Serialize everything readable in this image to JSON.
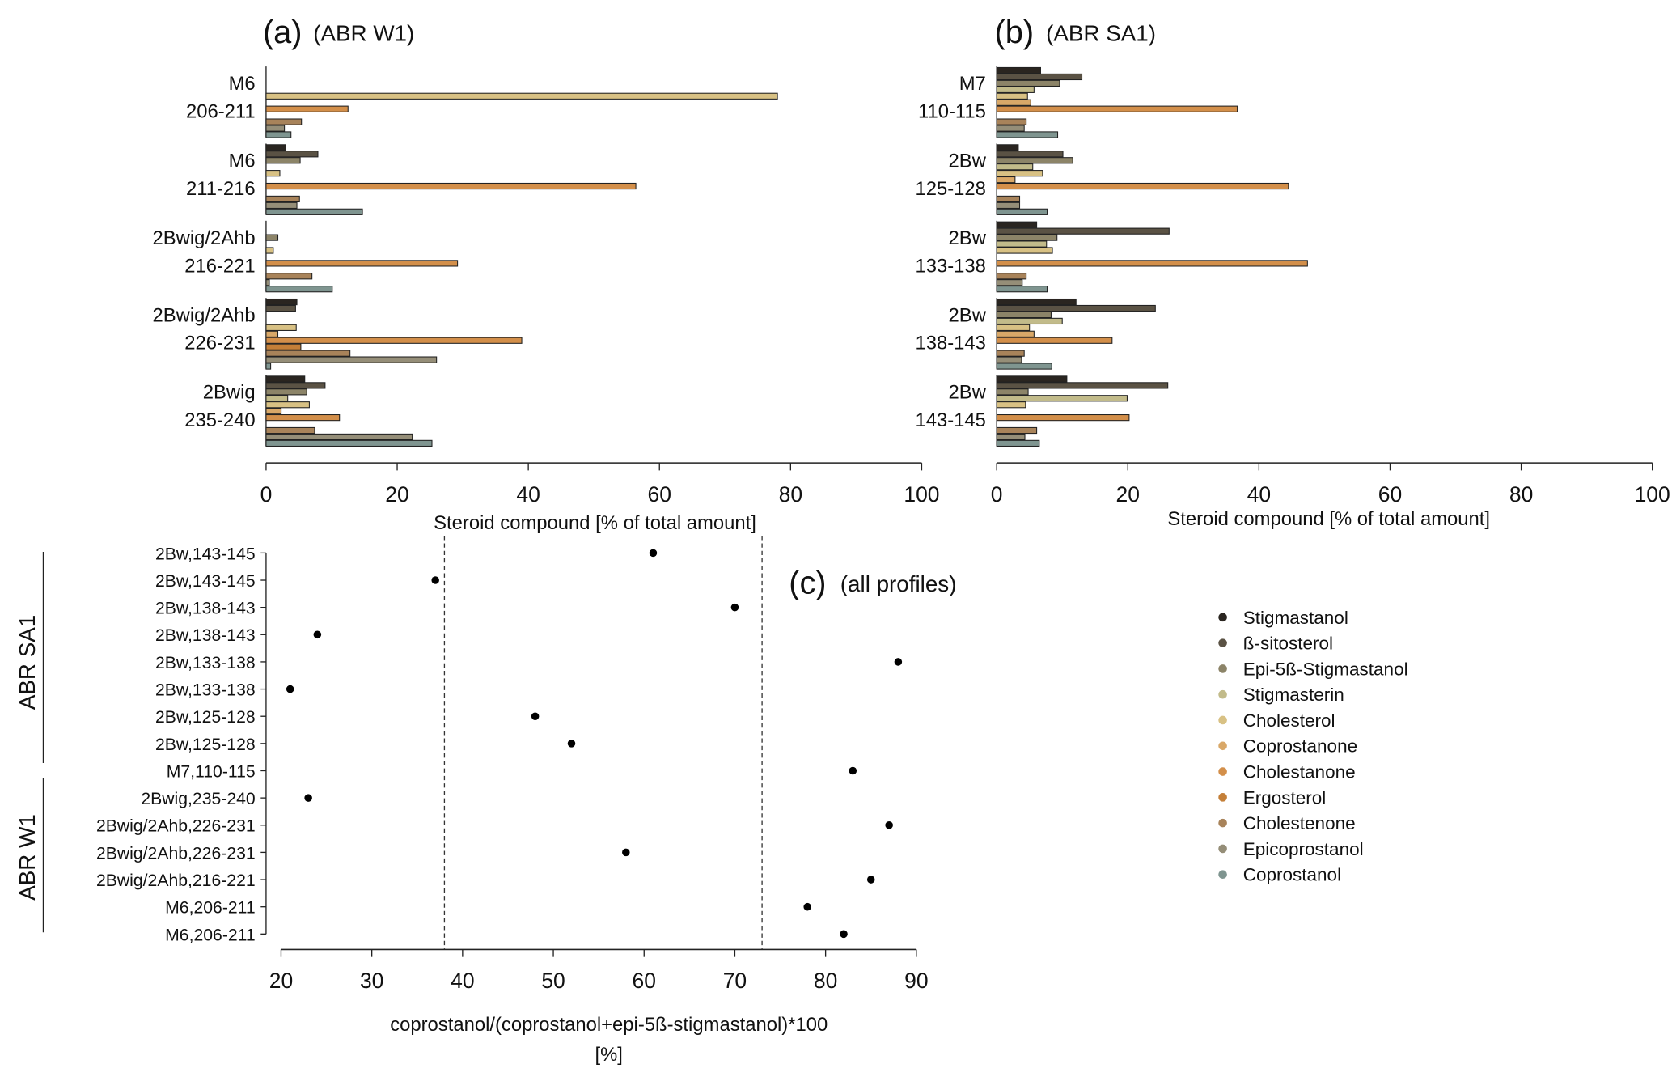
{
  "compounds": [
    "Stigmastanol",
    "ß-sitosterol",
    "Epi-5ß-Stigmastanol",
    "Stigmasterin",
    "Cholesterol",
    "Coprostanone",
    "Cholestanone",
    "Ergosterol",
    "Cholestenone",
    "Epicoprostanol",
    "Coprostanol"
  ],
  "colors": [
    "#2a2520",
    "#5a5244",
    "#8c8468",
    "#c2bb8a",
    "#d8c184",
    "#d9a868",
    "#d38f4a",
    "#c47f38",
    "#a8835a",
    "#958e78",
    "#7f9590"
  ],
  "chart_data": [
    {
      "type": "bar",
      "orientation": "horizontal",
      "panel": "(a)",
      "title": "(ABR W1)",
      "xlabel": "Steroid compound [% of total amount]",
      "xlim": [
        0,
        100
      ],
      "xticks": [
        "0",
        "20",
        "40",
        "60",
        "80",
        "100"
      ],
      "groups": [
        {
          "label1": "M6",
          "label2": "206-211",
          "values": [
            0,
            0,
            0,
            0,
            78,
            0,
            12.5,
            0,
            5.4,
            2.8,
            3.8
          ]
        },
        {
          "label1": "M6",
          "label2": "211-216",
          "values": [
            3.0,
            7.9,
            5.2,
            0,
            2.1,
            0,
            56.4,
            0,
            5.1,
            4.7,
            14.7
          ]
        },
        {
          "label1": "2Bwig/2Ahb",
          "label2": "216-221",
          "values": [
            0,
            0,
            1.8,
            0,
            1.1,
            0,
            29.2,
            0,
            7.0,
            0.5,
            10.1
          ]
        },
        {
          "label1": "2Bwig/2Ahb",
          "label2": "226-231",
          "values": [
            4.7,
            4.5,
            0,
            0,
            4.6,
            1.8,
            39.0,
            5.3,
            12.8,
            26.0,
            0.7
          ]
        },
        {
          "label1": "2Bwig",
          "label2": "235-240",
          "values": [
            5.9,
            9.0,
            6.2,
            3.3,
            6.6,
            2.3,
            11.2,
            0,
            7.4,
            22.3,
            25.3
          ]
        }
      ]
    },
    {
      "type": "bar",
      "orientation": "horizontal",
      "panel": "(b)",
      "title": "(ABR SA1)",
      "xlabel": "Steroid compound [% of total amount]",
      "xlim": [
        0,
        100
      ],
      "xticks": [
        "0",
        "20",
        "40",
        "60",
        "80",
        "100"
      ],
      "groups": [
        {
          "label1": "M7",
          "label2": "110-115",
          "values": [
            6.7,
            13.0,
            9.6,
            5.7,
            4.7,
            5.2,
            36.7,
            0,
            4.5,
            4.2,
            9.3
          ]
        },
        {
          "label1": "2Bw",
          "label2": "125-128",
          "values": [
            3.3,
            10.1,
            11.6,
            5.5,
            7.0,
            2.8,
            44.5,
            0,
            3.5,
            3.5,
            7.7
          ]
        },
        {
          "label1": "2Bw",
          "label2": "133-138",
          "values": [
            6.1,
            26.3,
            9.2,
            7.6,
            8.5,
            0,
            47.4,
            0,
            4.5,
            3.9,
            7.7
          ]
        },
        {
          "label1": "2Bw",
          "label2": "138-143",
          "values": [
            12.1,
            24.2,
            8.3,
            10.0,
            5.0,
            5.7,
            17.6,
            0,
            4.2,
            3.8,
            8.4
          ]
        },
        {
          "label1": "2Bw",
          "label2": "143-145",
          "values": [
            10.7,
            26.1,
            4.8,
            19.9,
            4.4,
            0,
            20.2,
            0,
            6.1,
            4.3,
            6.5
          ]
        }
      ]
    },
    {
      "type": "scatter",
      "panel": "(c)",
      "title": "(all profiles)",
      "xlabel": "coprostanol/(coprostanol+epi-5ß-stigmastanol)*100",
      "xlabel2": "[%]",
      "xlim": [
        20,
        90
      ],
      "xticks": [
        "20",
        "30",
        "40",
        "50",
        "60",
        "70",
        "80",
        "90"
      ],
      "reference_lines": [
        38,
        73
      ],
      "group_labels": [
        "ABR SA1",
        "ABR W1"
      ],
      "points": [
        {
          "label": "2Bw,143-145",
          "x": 61
        },
        {
          "label": "2Bw,143-145",
          "x": 37
        },
        {
          "label": "2Bw,138-143",
          "x": 70
        },
        {
          "label": "2Bw,138-143",
          "x": 24
        },
        {
          "label": "2Bw,133-138",
          "x": 88
        },
        {
          "label": "2Bw,133-138",
          "x": 21
        },
        {
          "label": "2Bw,125-128",
          "x": 48
        },
        {
          "label": "2Bw,125-128",
          "x": 52
        },
        {
          "label": "M7,110-115",
          "x": 83
        },
        {
          "label": "2Bwig,235-240",
          "x": 23
        },
        {
          "label": "2Bwig/2Ahb,226-231",
          "x": 87
        },
        {
          "label": "2Bwig/2Ahb,226-231",
          "x": 58
        },
        {
          "label": "2Bwig/2Ahb,216-221",
          "x": 85
        },
        {
          "label": "M6,206-211",
          "x": 78
        },
        {
          "label": "M6,206-211",
          "x": 82
        }
      ]
    }
  ]
}
